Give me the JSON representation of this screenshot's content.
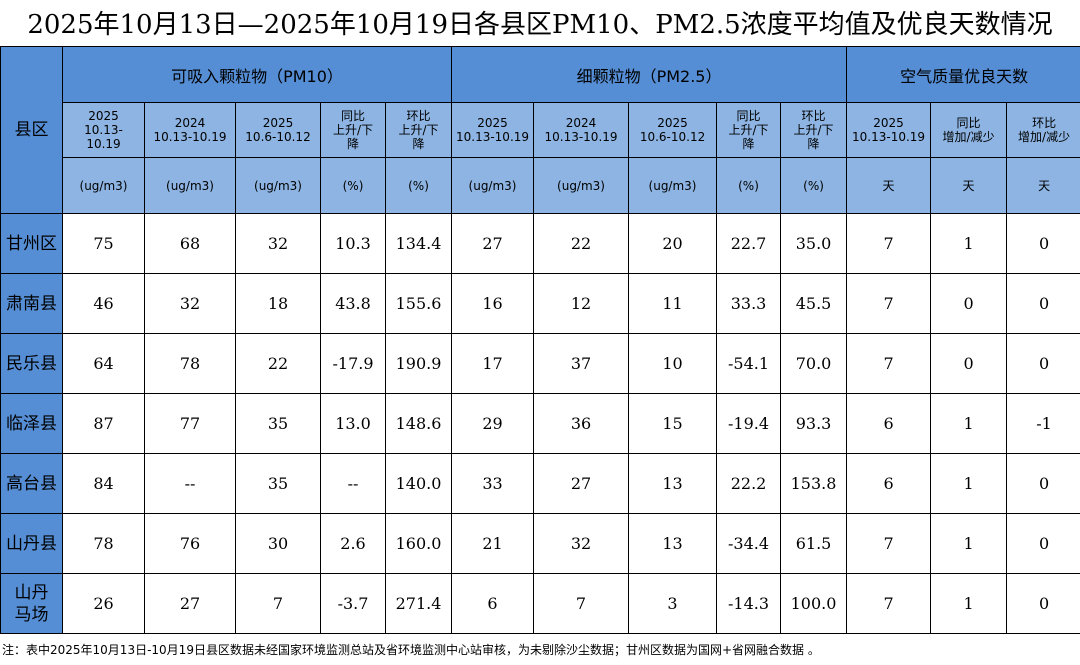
{
  "title": "2025年10月13日—2025年10月19日各县区PM10、PM2.5浓度平均值及优良天数情况",
  "header": {
    "district": "县区",
    "pm10": "可吸入颗粒物（PM10）",
    "pm25": "细颗粒物（PM2.5）",
    "days": "空气质量优良天数"
  },
  "subheaders": [
    "2025\n10.13-\n10.19",
    "2024\n10.13-10.19",
    "2025\n10.6-10.12",
    "同比\n上升/下\n降",
    "环比\n上升/下\n降",
    "2025\n10.13-10.19",
    "2024\n10.13-10.19",
    "2025\n10.6-10.12",
    "同比\n上升/下\n降",
    "环比\n上升/下\n降",
    "2025\n10.13-10.19",
    "同比\n增加/减少",
    "环比\n增加/减少"
  ],
  "units": [
    "(ug/m3)",
    "(ug/m3)",
    "(ug/m3)",
    "(%)",
    "(%)",
    "(ug/m3)",
    "(ug/m3)",
    "(ug/m3)",
    "(%)",
    "(%)",
    "天",
    "天",
    "天"
  ],
  "rows": [
    {
      "name": "甘州区",
      "values": [
        "75",
        "68",
        "32",
        "10.3",
        "134.4",
        "27",
        "22",
        "20",
        "22.7",
        "35.0",
        "7",
        "1",
        "0"
      ]
    },
    {
      "name": "肃南县",
      "values": [
        "46",
        "32",
        "18",
        "43.8",
        "155.6",
        "16",
        "12",
        "11",
        "33.3",
        "45.5",
        "7",
        "0",
        "0"
      ]
    },
    {
      "name": "民乐县",
      "values": [
        "64",
        "78",
        "22",
        "-17.9",
        "190.9",
        "17",
        "37",
        "10",
        "-54.1",
        "70.0",
        "7",
        "0",
        "0"
      ]
    },
    {
      "name": "临泽县",
      "values": [
        "87",
        "77",
        "35",
        "13.0",
        "148.6",
        "29",
        "36",
        "15",
        "-19.4",
        "93.3",
        "6",
        "1",
        "-1"
      ]
    },
    {
      "name": "高台县",
      "values": [
        "84",
        "--",
        "35",
        "--",
        "140.0",
        "33",
        "27",
        "13",
        "22.2",
        "153.8",
        "6",
        "1",
        "0"
      ]
    },
    {
      "name": "山丹县",
      "values": [
        "78",
        "76",
        "30",
        "2.6",
        "160.0",
        "21",
        "32",
        "13",
        "-34.4",
        "61.5",
        "7",
        "1",
        "0"
      ]
    },
    {
      "name": "山丹\n马场",
      "values": [
        "26",
        "27",
        "7",
        "-3.7",
        "271.4",
        "6",
        "7",
        "3",
        "-14.3",
        "100.0",
        "7",
        "1",
        "0"
      ]
    }
  ],
  "footnote": "注：表中2025年10月13日-10月19日县区数据未经国家环境监测总站及省环境监测中心站审核，为未剔除沙尘数据；甘州区数据为国网+省网融合数据 。",
  "colors": {
    "header": "#558ed5",
    "subheader": "#8db4e2"
  }
}
